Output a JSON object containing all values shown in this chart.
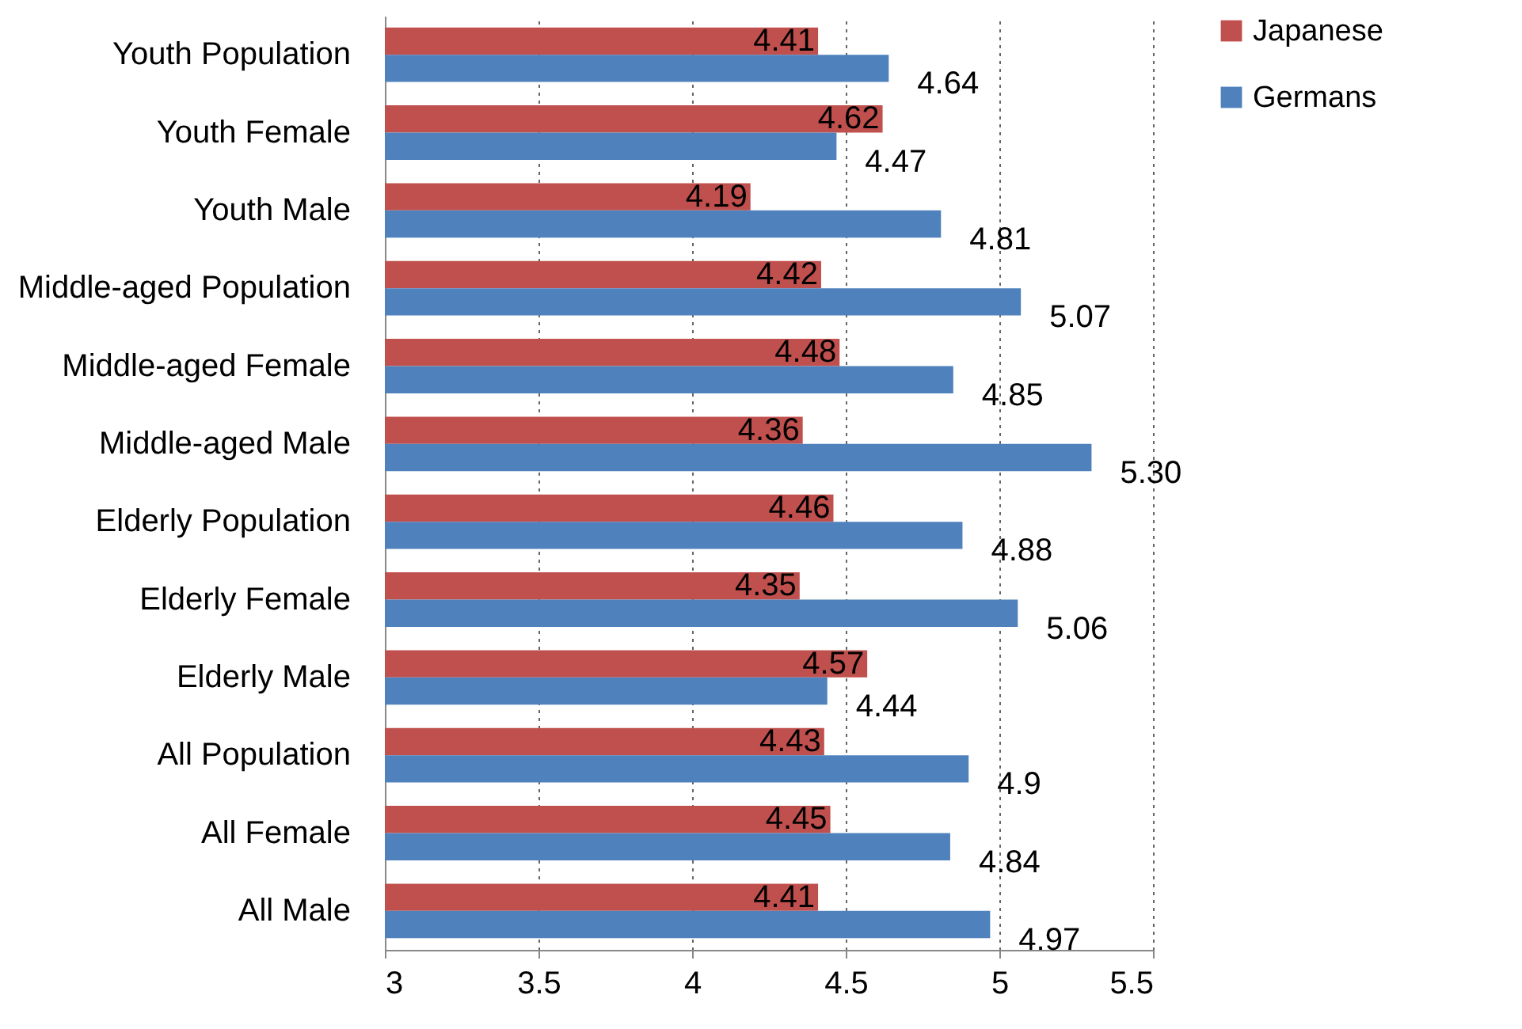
{
  "chart_data": {
    "type": "bar",
    "orientation": "horizontal",
    "categories": [
      "Youth Population",
      "Youth Female",
      "Youth Male",
      "Middle-aged Population",
      "Middle-aged Female",
      "Middle-aged Male",
      "Elderly Population",
      "Elderly Female",
      "Elderly Male",
      "All Population",
      "All Female",
      "All Male"
    ],
    "series": [
      {
        "name": "Japanese",
        "color": "#c0504d",
        "values": [
          4.41,
          4.62,
          4.19,
          4.42,
          4.48,
          4.36,
          4.46,
          4.35,
          4.57,
          4.43,
          4.45,
          4.41
        ],
        "value_labels": [
          "4.41",
          "4.62",
          "4.19",
          "4.42",
          "4.48",
          "4.36",
          "4.46",
          "4.35",
          "4.57",
          "4.43",
          "4.45",
          "4.41"
        ]
      },
      {
        "name": "Germans",
        "color": "#4f81bd",
        "values": [
          4.64,
          4.47,
          4.81,
          5.07,
          4.85,
          5.3,
          4.88,
          5.06,
          4.44,
          4.9,
          4.84,
          4.97
        ],
        "value_labels": [
          "4.64",
          "4.47",
          "4.81",
          "5.07",
          "4.85",
          "5.30",
          "4.88",
          "5.06",
          "4.44",
          "4.9",
          "4.84",
          "4.97"
        ]
      }
    ],
    "xlim": [
      3,
      5.5
    ],
    "xticks": [
      3,
      3.5,
      4,
      4.5,
      5,
      5.5
    ],
    "grid": "x",
    "legend": "right"
  }
}
